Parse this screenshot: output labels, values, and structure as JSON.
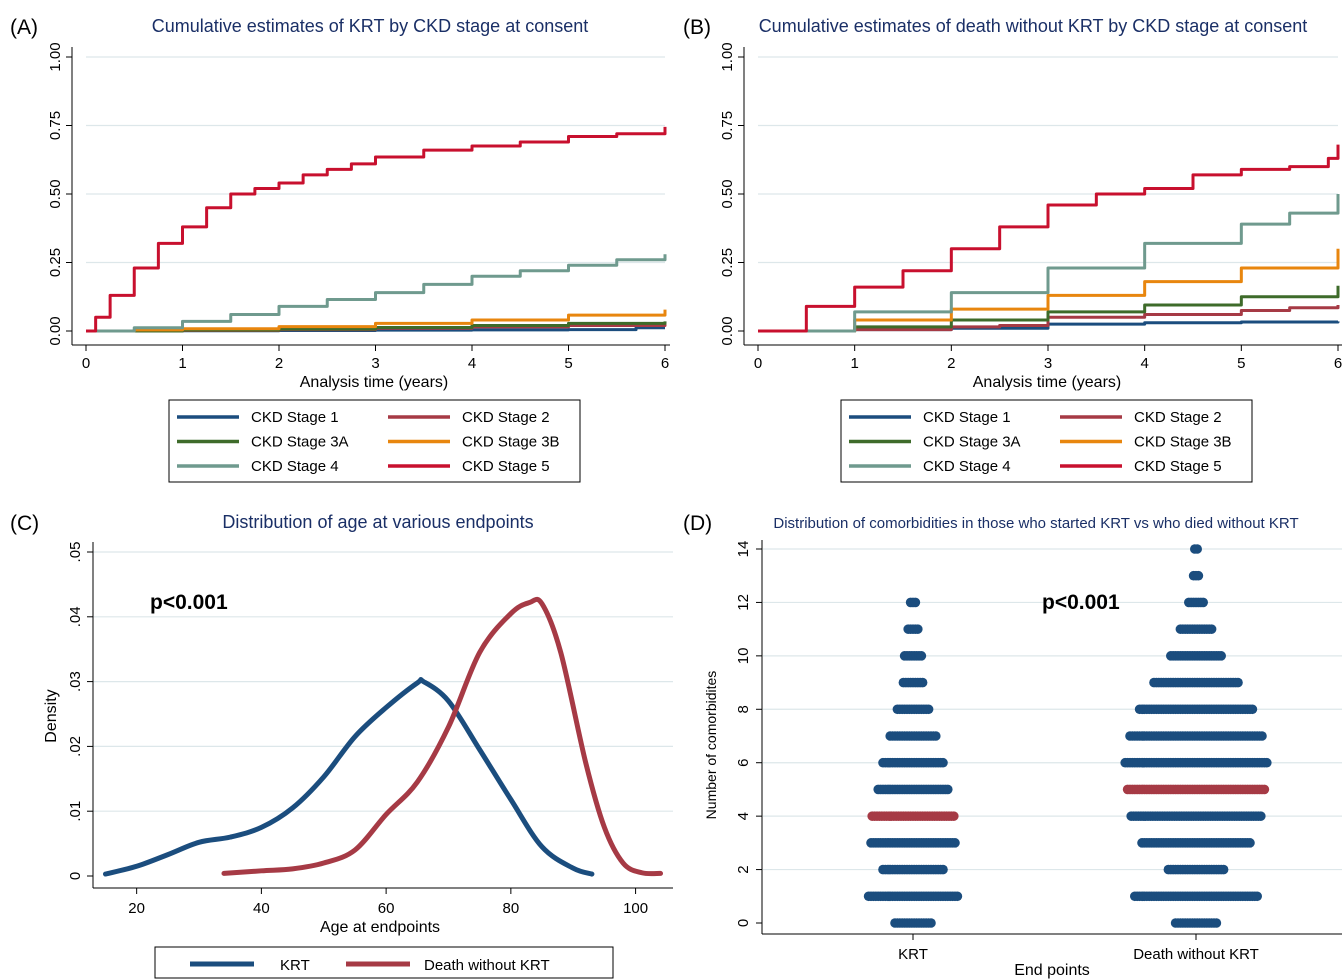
{
  "panels": {
    "A": {
      "label": "(A)",
      "title": "Cumulative estimates of KRT by CKD stage at consent",
      "xlabel": "Analysis time (years)",
      "ylabel": ""
    },
    "B": {
      "label": "(B)",
      "title": "Cumulative estimates of death without KRT by CKD stage at consent",
      "xlabel": "Analysis time (years)",
      "ylabel": ""
    },
    "C": {
      "label": "(C)",
      "title": "Distribution of age at various endpoints",
      "xlabel": "Age at endpoints",
      "ylabel": "Density",
      "annotation": "p<0.001"
    },
    "D": {
      "label": "(D)",
      "title": "Distribution of comorbidities in those who started KRT vs who died without KRT",
      "xlabel": "End points",
      "ylabel": "Number of comorbidites",
      "annotation": "p<0.001"
    }
  },
  "colors": {
    "stage1": "#1b4d7e",
    "stage2": "#a63a45",
    "stage3a": "#3e6b2a",
    "stage3b": "#e8860e",
    "stage4": "#6f9a8e",
    "stage5": "#c8102e",
    "krt": "#1b4d7e",
    "death": "#a63a45",
    "grid": "#dde7ea",
    "title": "#1a2f66"
  },
  "chart_data": [
    {
      "type": "line",
      "panel": "A",
      "title": "Cumulative estimates of KRT by CKD stage at consent",
      "xlabel": "Analysis time (years)",
      "ylabel": "",
      "xlim": [
        0,
        6
      ],
      "ylim": [
        0,
        1
      ],
      "xticks": [
        0,
        1,
        2,
        3,
        4,
        5,
        6
      ],
      "yticks": [
        "0.00",
        "0.25",
        "0.50",
        "0.75",
        "1.00"
      ],
      "grid": true,
      "legend_position": "bottom",
      "series": [
        {
          "name": "CKD Stage 1",
          "color_key": "stage1",
          "x": [
            0,
            1,
            2,
            3,
            4,
            5,
            5.7,
            5.7,
            6
          ],
          "y": [
            0,
            0.001,
            0.002,
            0.003,
            0.004,
            0.005,
            0.006,
            0.012,
            0.012
          ]
        },
        {
          "name": "CKD Stage 2",
          "color_key": "stage2",
          "x": [
            0,
            1,
            2,
            3,
            4,
            5,
            6
          ],
          "y": [
            0,
            0.002,
            0.005,
            0.01,
            0.015,
            0.02,
            0.025
          ]
        },
        {
          "name": "CKD Stage 3A",
          "color_key": "stage3a",
          "x": [
            0,
            1,
            2,
            3,
            4,
            5,
            6
          ],
          "y": [
            0,
            0.003,
            0.007,
            0.013,
            0.02,
            0.028,
            0.035
          ]
        },
        {
          "name": "CKD Stage 3B",
          "color_key": "stage3b",
          "x": [
            0,
            0.5,
            1,
            2,
            3,
            4,
            5,
            6
          ],
          "y": [
            0,
            0.004,
            0.008,
            0.016,
            0.028,
            0.04,
            0.058,
            0.078
          ]
        },
        {
          "name": "CKD Stage 4",
          "color_key": "stage4",
          "x": [
            0,
            0.5,
            1,
            1.5,
            2,
            2.5,
            3,
            3.5,
            4,
            4.5,
            5,
            5.5,
            6
          ],
          "y": [
            0,
            0.012,
            0.035,
            0.06,
            0.09,
            0.115,
            0.14,
            0.17,
            0.2,
            0.22,
            0.24,
            0.26,
            0.28
          ]
        },
        {
          "name": "CKD Stage 5",
          "color_key": "stage5",
          "x": [
            0,
            0.1,
            0.25,
            0.5,
            0.75,
            1,
            1.25,
            1.5,
            1.75,
            2,
            2.25,
            2.5,
            2.75,
            3,
            3.5,
            4,
            4.5,
            5,
            5.5,
            6
          ],
          "y": [
            0,
            0.05,
            0.13,
            0.23,
            0.32,
            0.38,
            0.45,
            0.5,
            0.52,
            0.54,
            0.57,
            0.59,
            0.61,
            0.635,
            0.66,
            0.675,
            0.69,
            0.71,
            0.72,
            0.745
          ]
        }
      ]
    },
    {
      "type": "line",
      "panel": "B",
      "title": "Cumulative estimates of death without KRT by CKD stage at consent",
      "xlabel": "Analysis time (years)",
      "ylabel": "",
      "xlim": [
        0,
        6
      ],
      "ylim": [
        0,
        1
      ],
      "xticks": [
        0,
        1,
        2,
        3,
        4,
        5,
        6
      ],
      "yticks": [
        "0.00",
        "0.25",
        "0.50",
        "0.75",
        "1.00"
      ],
      "grid": true,
      "legend_position": "bottom",
      "series": [
        {
          "name": "CKD Stage 1",
          "color_key": "stage1",
          "x": [
            0,
            1,
            2,
            3,
            4,
            5,
            6
          ],
          "y": [
            0,
            0.005,
            0.01,
            0.025,
            0.03,
            0.033,
            0.035
          ]
        },
        {
          "name": "CKD Stage 2",
          "color_key": "stage2",
          "x": [
            0,
            1,
            2,
            2.5,
            3,
            4,
            5,
            5.5,
            6
          ],
          "y": [
            0,
            0.005,
            0.015,
            0.02,
            0.05,
            0.06,
            0.075,
            0.085,
            0.095
          ]
        },
        {
          "name": "CKD Stage 3A",
          "color_key": "stage3a",
          "x": [
            0,
            1,
            2,
            3,
            4,
            5,
            6
          ],
          "y": [
            0,
            0.015,
            0.04,
            0.07,
            0.095,
            0.125,
            0.165
          ]
        },
        {
          "name": "CKD Stage 3B",
          "color_key": "stage3b",
          "x": [
            0,
            1,
            2,
            3,
            4,
            5,
            6
          ],
          "y": [
            0,
            0.04,
            0.08,
            0.13,
            0.18,
            0.23,
            0.3
          ]
        },
        {
          "name": "CKD Stage 4",
          "color_key": "stage4",
          "x": [
            0,
            1,
            2,
            3,
            4,
            5,
            5.5,
            6
          ],
          "y": [
            0,
            0.07,
            0.14,
            0.23,
            0.32,
            0.39,
            0.43,
            0.5
          ]
        },
        {
          "name": "CKD Stage 5",
          "color_key": "stage5",
          "x": [
            0,
            0.5,
            1,
            1.5,
            2,
            2.5,
            3,
            3.5,
            4,
            4.5,
            5,
            5.5,
            5.9,
            6
          ],
          "y": [
            0,
            0.09,
            0.16,
            0.22,
            0.3,
            0.38,
            0.46,
            0.5,
            0.52,
            0.57,
            0.59,
            0.6,
            0.63,
            0.68
          ]
        }
      ]
    },
    {
      "type": "line",
      "panel": "C",
      "title": "Distribution of age at various endpoints",
      "xlabel": "Age at endpoints",
      "ylabel": "Density",
      "xlim": [
        13,
        106
      ],
      "ylim": [
        0,
        0.05
      ],
      "xticks": [
        20,
        40,
        60,
        80,
        100
      ],
      "yticks": [
        "0",
        ".01",
        ".02",
        ".03",
        ".04",
        ".05"
      ],
      "grid": true,
      "legend_position": "bottom",
      "series": [
        {
          "name": "KRT",
          "color_key": "krt",
          "x": [
            15,
            20,
            25,
            30,
            35,
            40,
            45,
            50,
            55,
            60,
            65,
            66,
            70,
            75,
            80,
            85,
            90,
            93
          ],
          "y": [
            0.0003,
            0.0015,
            0.0033,
            0.0052,
            0.006,
            0.0075,
            0.0105,
            0.0153,
            0.0215,
            0.026,
            0.0298,
            0.03,
            0.027,
            0.0195,
            0.0118,
            0.0045,
            0.0012,
            0.0003
          ]
        },
        {
          "name": "Death without KRT",
          "color_key": "death",
          "x": [
            34,
            40,
            45,
            50,
            55,
            60,
            65,
            70,
            75,
            80,
            83,
            85,
            88,
            92,
            95,
            98,
            101,
            104
          ],
          "y": [
            0.0004,
            0.0008,
            0.0011,
            0.002,
            0.004,
            0.0095,
            0.0145,
            0.023,
            0.0345,
            0.0405,
            0.0422,
            0.042,
            0.0345,
            0.0175,
            0.0075,
            0.002,
            0.0005,
            0.0004
          ]
        }
      ]
    },
    {
      "type": "scatter",
      "panel": "D",
      "subtype": "dot-strip",
      "title": "Distribution of comorbidities in those who started KRT vs who died without KRT",
      "xlabel": "End points",
      "ylabel": "Number of comorbidites",
      "categories": [
        "KRT",
        "Death without KRT"
      ],
      "ylim": [
        0,
        14
      ],
      "yticks": [
        0,
        2,
        4,
        6,
        8,
        10,
        12,
        14
      ],
      "grid": true,
      "medians": [
        4,
        5
      ],
      "series": [
        {
          "name": "KRT",
          "color_key": "krt",
          "y": [
            0,
            1,
            2,
            3,
            4,
            5,
            6,
            7,
            8,
            9,
            10,
            11,
            12
          ],
          "count": [
            16,
            38,
            26,
            36,
            35,
            30,
            26,
            20,
            14,
            9,
            8,
            5,
            3
          ]
        },
        {
          "name": "Death without KRT",
          "color_key": "krt",
          "y": [
            0,
            1,
            2,
            3,
            4,
            5,
            6,
            7,
            8,
            9,
            10,
            11,
            12,
            13,
            14
          ],
          "count": [
            18,
            52,
            24,
            46,
            55,
            58,
            60,
            56,
            48,
            36,
            22,
            14,
            7,
            3,
            2
          ]
        }
      ]
    }
  ]
}
